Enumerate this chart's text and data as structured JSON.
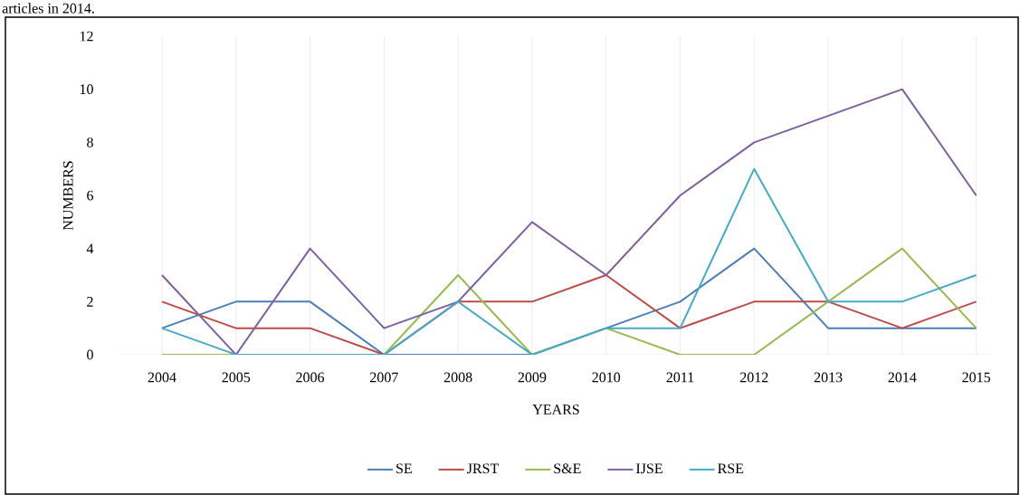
{
  "chart_data": {
    "type": "line",
    "annotations": [
      "articles in 2014."
    ],
    "xlabel": "YEARS",
    "ylabel": "NUMBERS",
    "categories": [
      "2004",
      "2005",
      "2006",
      "2007",
      "2008",
      "2009",
      "2010",
      "2011",
      "2012",
      "2013",
      "2014",
      "2015"
    ],
    "series": [
      {
        "name": "SE",
        "color": "#4a7ebb",
        "values": [
          1,
          2,
          2,
          0,
          0,
          0,
          1,
          2,
          4,
          1,
          1,
          1
        ]
      },
      {
        "name": "JRST",
        "color": "#be4b48",
        "values": [
          2,
          1,
          1,
          0,
          2,
          2,
          3,
          1,
          2,
          2,
          1,
          2
        ]
      },
      {
        "name": "S&E",
        "color": "#98b954",
        "values": [
          0,
          0,
          0,
          0,
          3,
          0,
          1,
          0,
          0,
          2,
          4,
          1
        ]
      },
      {
        "name": "IJSE",
        "color": "#7d60a0",
        "values": [
          3,
          0,
          4,
          1,
          2,
          5,
          3,
          6,
          8,
          9,
          10,
          6
        ]
      },
      {
        "name": "RSE",
        "color": "#46aac5",
        "values": [
          1,
          0,
          0,
          0,
          2,
          0,
          1,
          1,
          7,
          2,
          2,
          3
        ]
      }
    ],
    "ylim": [
      0,
      12
    ],
    "yticks": [
      0,
      2,
      4,
      6,
      8,
      10,
      12
    ],
    "grid": "x",
    "legend": "bottom",
    "marker": "none",
    "line_style": "solid"
  }
}
